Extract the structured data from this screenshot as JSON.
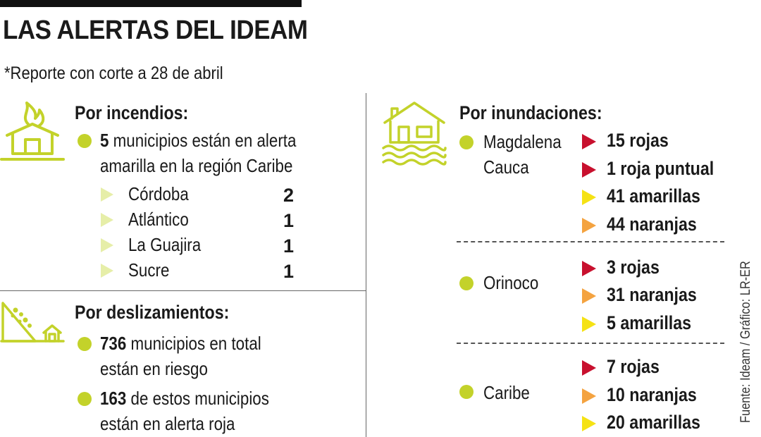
{
  "header": {
    "title": "LAS ALERTAS DEL IDEAM",
    "subtitle": "*Reporte con corte a 28 de abril"
  },
  "colors": {
    "accent": "#c3d22a",
    "red": "#c8102e",
    "orange": "#f4a340",
    "yellow": "#f5e214",
    "pale": "#e6eea8"
  },
  "incendios": {
    "icon": "burning-house-icon",
    "heading": "Por incendios:",
    "count": "5",
    "text_line1": " municipios están en alerta",
    "text_line2": "amarilla en la región Caribe",
    "departments": [
      {
        "name": "Córdoba",
        "value": "2"
      },
      {
        "name": "Atlántico",
        "value": "1"
      },
      {
        "name": "La Guajira",
        "value": "1"
      },
      {
        "name": "Sucre",
        "value": "1"
      }
    ]
  },
  "deslizamientos": {
    "icon": "landslide-icon",
    "heading": "Por deslizamientos:",
    "item1_count": "736",
    "item1_line1": " municipios en total",
    "item1_line2": "están en riesgo",
    "item2_count": "163",
    "item2_line1": " de estos municipios",
    "item2_line2": "están en alerta roja"
  },
  "inundaciones": {
    "icon": "flooded-house-icon",
    "heading": "Por inundaciones:",
    "regions": [
      {
        "name_line1": "Magdalena",
        "name_line2": "Cauca",
        "alerts": [
          {
            "label": "15 rojas",
            "color": "#c8102e"
          },
          {
            "label": "1 roja puntual",
            "color": "#c8102e"
          },
          {
            "label": "41 amarillas",
            "color": "#f5e214"
          },
          {
            "label": "44 naranjas",
            "color": "#f4a340"
          }
        ]
      },
      {
        "name_line1": "Orinoco",
        "name_line2": "",
        "alerts": [
          {
            "label": "3 rojas",
            "color": "#c8102e"
          },
          {
            "label": "31 naranjas",
            "color": "#f4a340"
          },
          {
            "label": "5 amarillas",
            "color": "#f5e214"
          }
        ]
      },
      {
        "name_line1": "Caribe",
        "name_line2": "",
        "alerts": [
          {
            "label": "7 rojas",
            "color": "#c8102e"
          },
          {
            "label": "10 naranjas",
            "color": "#f4a340"
          },
          {
            "label": "20 amarillas",
            "color": "#f5e214"
          }
        ]
      }
    ]
  },
  "source": "Fuente: Ideam / Gráfico: LR-ER"
}
